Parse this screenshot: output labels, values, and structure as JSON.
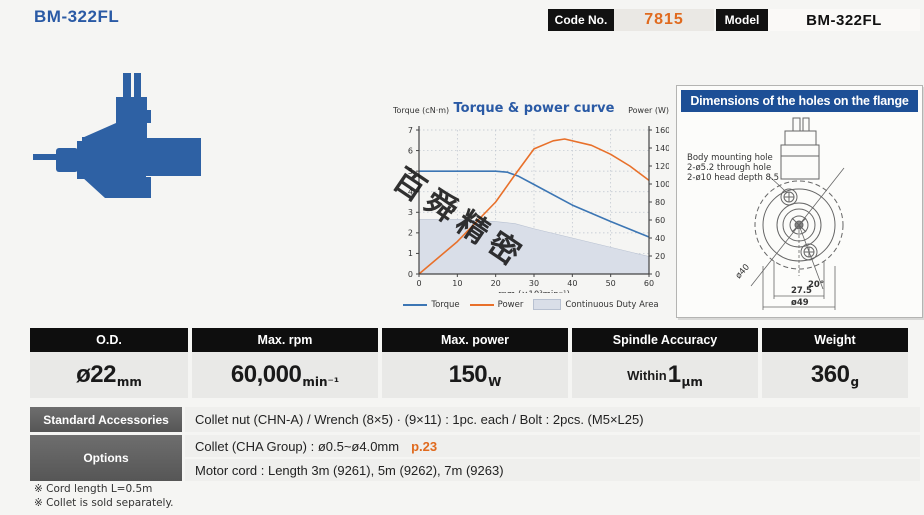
{
  "header": {
    "title": "BM-322FL",
    "code_label": "Code No.",
    "code_value": "7815",
    "model_label": "Model",
    "model_value": "BM-322FL"
  },
  "chart": {
    "watermark": "百舜精密"
  },
  "chart_data": {
    "type": "line",
    "title": "Torque & power curve",
    "title_color": "#2a5aa5",
    "xlabel": "rpm (×10³min⁻¹)",
    "x_range": [
      0,
      60
    ],
    "x_ticks": [
      0,
      10,
      20,
      30,
      40,
      50,
      60
    ],
    "y_left": {
      "label": "Torque (cN·m)",
      "range": [
        0,
        7
      ],
      "ticks": [
        0,
        1,
        2,
        3,
        4,
        5,
        6,
        7
      ]
    },
    "y_right": {
      "label": "Power (W)",
      "range": [
        0,
        160
      ],
      "ticks": [
        0,
        20,
        40,
        60,
        80,
        100,
        120,
        140,
        160
      ]
    },
    "grid": true,
    "legend_position": "bottom",
    "series": [
      {
        "name": "Continuous Duty Area",
        "type": "area",
        "axis": "left",
        "color": "#d9dee8",
        "x": [
          0,
          10,
          20,
          25,
          30,
          40,
          50,
          60
        ],
        "y": [
          2.65,
          2.65,
          2.55,
          2.45,
          2.2,
          1.75,
          1.3,
          0.85
        ]
      },
      {
        "name": "Torque",
        "type": "line",
        "axis": "left",
        "color": "#3c76b4",
        "x": [
          0,
          10,
          15,
          20,
          23,
          26,
          30,
          40,
          50,
          60
        ],
        "y": [
          5.0,
          5.0,
          5.0,
          5.0,
          4.95,
          4.75,
          4.35,
          3.35,
          2.55,
          1.8
        ]
      },
      {
        "name": "Power",
        "type": "line",
        "axis": "right",
        "color": "#e8702a",
        "x": [
          0,
          10,
          20,
          25,
          30,
          35,
          38,
          45,
          50,
          55,
          60
        ],
        "y": [
          0,
          36,
          80,
          110,
          139,
          148,
          150,
          143,
          133,
          120,
          104
        ]
      }
    ]
  },
  "flange": {
    "header": "Dimensions of the holes on the flange",
    "note_line1": "Body mounting hole",
    "note_line2": "2-ø5.2 through hole",
    "note_line3": "2-ø10 head depth 8.5",
    "dim_pitch_circle": "ø40",
    "dim_angle": "20°",
    "dim_width": "27.5",
    "dim_outer": "ø49"
  },
  "specs": {
    "columns": [
      {
        "header": "O.D.",
        "prefix": "",
        "value": "ø22",
        "unit": "mm"
      },
      {
        "header": "Max. rpm",
        "prefix": "",
        "value": "60,000",
        "unit": "min⁻¹"
      },
      {
        "header": "Max. power",
        "prefix": "",
        "value": "150",
        "unit": "W"
      },
      {
        "header": "Spindle Accuracy",
        "prefix": "Within",
        "value": "1",
        "unit": "μm"
      },
      {
        "header": "Weight",
        "prefix": "",
        "value": "360",
        "unit": "g"
      }
    ]
  },
  "accessories": {
    "standard_label": "Standard Accessories",
    "standard_value": "Collet nut (CHN-A) / Wrench (8×5) · (9×11) : 1pc. each / Bolt : 2pcs. (M5×L25)",
    "options_label": "Options",
    "option_rows": [
      {
        "text": "Collet (CHA Group) : ø0.5~ø4.0mm",
        "link": "p.23"
      },
      {
        "text": "Motor cord : Length 3m (9261), 5m (9262), 7m (9263)",
        "link": ""
      }
    ]
  },
  "footnotes": [
    "※ Cord length L=0.5m",
    "※ Collet is sold separately."
  ]
}
